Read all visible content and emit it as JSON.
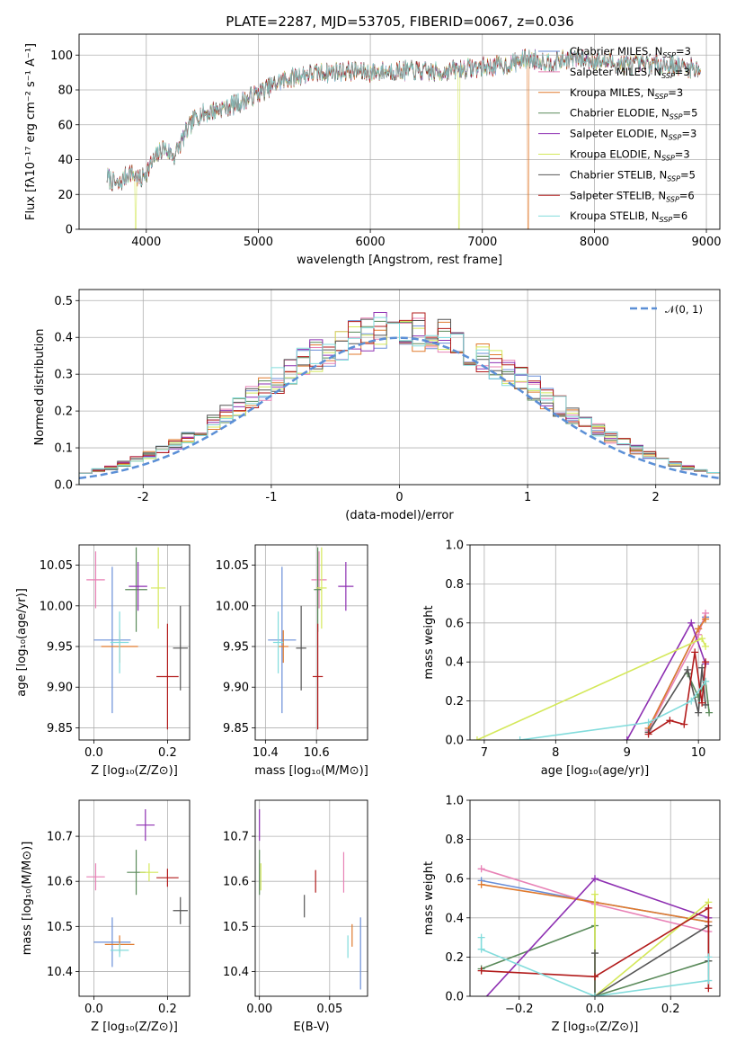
{
  "colors": {
    "c_miles": "#6a8fd8",
    "s_miles": "#e882b6",
    "k_miles": "#e07a2e",
    "c_elodie": "#5a8a5a",
    "s_elodie": "#8e30b2",
    "k_elodie": "#d4e85a",
    "c_stelib": "#555555",
    "s_stelib": "#b21b1b",
    "k_stelib": "#82dcdc",
    "normal": "#5b8fd6"
  },
  "figure": {
    "title": "PLATE=2287, MJD=53705, FIBERID=0067, z=0.036"
  },
  "chart_data": [
    {
      "id": "spectrum",
      "type": "line",
      "xlabel": "wavelength [Angstrom, rest frame]",
      "ylabel": "Flux [fλ10⁻¹⁷ erg cm⁻² s⁻¹ A⁻¹]",
      "xlim": [
        3400,
        9120
      ],
      "ylim": [
        0,
        112
      ],
      "xticks": [
        4000,
        5000,
        6000,
        7000,
        8000,
        9000
      ],
      "yticks": [
        0,
        20,
        40,
        60,
        80,
        100
      ],
      "x_range": [
        3650,
        8950
      ],
      "continuum": [
        [
          3650,
          30
        ],
        [
          3750,
          25
        ],
        [
          3850,
          33
        ],
        [
          3950,
          28
        ],
        [
          4050,
          38
        ],
        [
          4150,
          47
        ],
        [
          4250,
          42
        ],
        [
          4350,
          55
        ],
        [
          4450,
          65
        ],
        [
          4550,
          67
        ],
        [
          4700,
          70
        ],
        [
          4850,
          73
        ],
        [
          5000,
          78
        ],
        [
          5200,
          85
        ],
        [
          5400,
          89
        ],
        [
          5600,
          90
        ],
        [
          5800,
          91
        ],
        [
          6000,
          90
        ],
        [
          6200,
          91
        ],
        [
          6400,
          91
        ],
        [
          6600,
          90
        ],
        [
          6800,
          92
        ],
        [
          7000,
          93
        ],
        [
          7200,
          94
        ],
        [
          7400,
          98
        ],
        [
          7600,
          96
        ],
        [
          7800,
          98
        ],
        [
          8000,
          97
        ],
        [
          8200,
          95
        ],
        [
          8400,
          94
        ],
        [
          8600,
          95
        ],
        [
          8800,
          93
        ],
        [
          8950,
          92
        ]
      ],
      "dropouts": [
        {
          "series": "Kroupa ELODIE",
          "at": 3905
        },
        {
          "series": "Kroupa ELODIE",
          "at": 6790
        },
        {
          "series": "Kroupa MILES",
          "at": 7410
        }
      ],
      "legend": [
        {
          "label": "Chabrier MILES, N",
          "sub": "SSP",
          "tail": "=3",
          "color_key": "c_miles"
        },
        {
          "label": "Salpeter MILES, N",
          "sub": "SSP",
          "tail": "=3",
          "color_key": "s_miles"
        },
        {
          "label": "Kroupa MILES, N",
          "sub": "SSP",
          "tail": "=3",
          "color_key": "k_miles"
        },
        {
          "label": "Chabrier ELODIE, N",
          "sub": "SSP",
          "tail": "=5",
          "color_key": "c_elodie"
        },
        {
          "label": "Salpeter ELODIE, N",
          "sub": "SSP",
          "tail": "=3",
          "color_key": "s_elodie"
        },
        {
          "label": "Kroupa ELODIE, N",
          "sub": "SSP",
          "tail": "=3",
          "color_key": "k_elodie"
        },
        {
          "label": "Chabrier STELIB, N",
          "sub": "SSP",
          "tail": "=5",
          "color_key": "c_stelib"
        },
        {
          "label": "Salpeter STELIB, N",
          "sub": "SSP",
          "tail": "=6",
          "color_key": "s_stelib"
        },
        {
          "label": "Kroupa STELIB, N",
          "sub": "SSP",
          "tail": "=6",
          "color_key": "k_stelib"
        }
      ]
    },
    {
      "id": "residuals",
      "type": "histogram",
      "xlabel": "(data-model)/error",
      "ylabel": "Normed distribution",
      "xlim": [
        -2.5,
        2.5
      ],
      "ylim": [
        0,
        0.53
      ],
      "xticks": [
        -2,
        -1,
        0,
        1,
        2
      ],
      "yticks": [
        0.0,
        0.1,
        0.2,
        0.3,
        0.4,
        0.5
      ],
      "bin_width": 0.1,
      "normal_label": "𝒩(0, 1)",
      "series_keys": [
        "c_miles",
        "s_miles",
        "k_miles",
        "c_elodie",
        "s_elodie",
        "k_elodie",
        "c_stelib",
        "s_stelib",
        "k_stelib"
      ]
    },
    {
      "id": "age_vs_Z",
      "type": "errorbar",
      "xlabel": "Z [log₁₀(Z/Z⊙)]",
      "ylabel": "age  [log₁₀(age/yr)]",
      "xlim": [
        -0.04,
        0.26
      ],
      "ylim": [
        9.835,
        10.075
      ],
      "xticks": [
        0.0,
        0.2
      ],
      "xticklabels": [
        "0.0",
        "0.2"
      ],
      "yticks": [
        9.85,
        9.9,
        9.95,
        10.0,
        10.05
      ],
      "points": [
        {
          "k": "c_miles",
          "x": 0.05,
          "xe": 0.05,
          "y": 9.958,
          "ye": 0.09
        },
        {
          "k": "s_miles",
          "x": 0.005,
          "xe": 0.025,
          "y": 10.032,
          "ye": 0.035
        },
        {
          "k": "k_miles",
          "x": 0.07,
          "xe": 0.05,
          "y": 9.95,
          "ye": 0.02
        },
        {
          "k": "c_elodie",
          "x": 0.115,
          "xe": 0.03,
          "y": 10.02,
          "ye": 0.052
        },
        {
          "k": "s_elodie",
          "x": 0.12,
          "xe": 0.025,
          "y": 10.024,
          "ye": 0.03
        },
        {
          "k": "k_elodie",
          "x": 0.175,
          "xe": 0.02,
          "y": 10.022,
          "ye": 0.05
        },
        {
          "k": "c_stelib",
          "x": 0.235,
          "xe": 0.02,
          "y": 9.948,
          "ye": 0.052
        },
        {
          "k": "s_stelib",
          "x": 0.2,
          "xe": 0.03,
          "y": 9.913,
          "ye": 0.065
        },
        {
          "k": "k_stelib",
          "x": 0.07,
          "xe": 0.025,
          "y": 9.955,
          "ye": 0.038
        }
      ]
    },
    {
      "id": "age_vs_mass",
      "type": "errorbar",
      "xlabel": "mass [log₁₀(M/M⊙)]",
      "ylabel": "",
      "xlim": [
        10.36,
        10.8
      ],
      "ylim": [
        9.835,
        10.075
      ],
      "xticks": [
        10.4,
        10.6
      ],
      "xticklabels": [
        "10.4",
        "10.6"
      ],
      "yticks": [
        9.85,
        9.9,
        9.95,
        10.0,
        10.05
      ],
      "points": [
        {
          "k": "c_miles",
          "x": 10.465,
          "xe": 0.055,
          "y": 9.958,
          "ye": 0.09
        },
        {
          "k": "s_miles",
          "x": 10.61,
          "xe": 0.03,
          "y": 10.032,
          "ye": 0.035
        },
        {
          "k": "k_miles",
          "x": 10.47,
          "xe": 0.02,
          "y": 9.95,
          "ye": 0.02
        },
        {
          "k": "c_elodie",
          "x": 10.605,
          "xe": 0.015,
          "y": 10.02,
          "ye": 0.052
        },
        {
          "k": "s_elodie",
          "x": 10.715,
          "xe": 0.03,
          "y": 10.024,
          "ye": 0.03
        },
        {
          "k": "k_elodie",
          "x": 10.62,
          "xe": 0.02,
          "y": 10.022,
          "ye": 0.05
        },
        {
          "k": "c_stelib",
          "x": 10.54,
          "xe": 0.02,
          "y": 9.948,
          "ye": 0.052
        },
        {
          "k": "s_stelib",
          "x": 10.605,
          "xe": 0.02,
          "y": 9.913,
          "ye": 0.065
        },
        {
          "k": "k_stelib",
          "x": 10.45,
          "xe": 0.02,
          "y": 9.955,
          "ye": 0.038
        }
      ]
    },
    {
      "id": "weight_vs_age",
      "type": "line",
      "xlabel": "age  [log₁₀(age/yr)]",
      "ylabel": "mass weight",
      "xlim": [
        6.8,
        10.3
      ],
      "ylim": [
        0.0,
        1.0
      ],
      "xticks": [
        7,
        8,
        9,
        10
      ],
      "yticks": [
        0.0,
        0.2,
        0.4,
        0.6,
        0.8,
        1.0
      ],
      "series": [
        {
          "k": "c_miles",
          "x": [
            9.3,
            10.0,
            10.1
          ],
          "y": [
            0.06,
            0.57,
            0.63
          ]
        },
        {
          "k": "s_miles",
          "x": [
            9.3,
            10.0,
            10.1
          ],
          "y": [
            0.05,
            0.54,
            0.65
          ]
        },
        {
          "k": "k_miles",
          "x": [
            9.3,
            10.0,
            10.1
          ],
          "y": [
            0.06,
            0.57,
            0.62
          ]
        },
        {
          "k": "c_elodie",
          "x": [
            9.85,
            10.0,
            10.1,
            10.15
          ],
          "y": [
            0.34,
            0.22,
            0.3,
            0.14
          ]
        },
        {
          "k": "s_elodie",
          "x": [
            9.0,
            9.9,
            10.1
          ],
          "y": [
            0.0,
            0.6,
            0.39
          ]
        },
        {
          "k": "k_elodie",
          "x": [
            6.9,
            10.05,
            10.1
          ],
          "y": [
            0.0,
            0.52,
            0.48
          ]
        },
        {
          "k": "c_stelib",
          "x": [
            9.3,
            9.85,
            10.0,
            10.05,
            10.1
          ],
          "y": [
            0.04,
            0.36,
            0.14,
            0.37,
            0.18
          ]
        },
        {
          "k": "s_stelib",
          "x": [
            9.3,
            9.6,
            9.8,
            9.95,
            10.05,
            10.1
          ],
          "y": [
            0.03,
            0.1,
            0.08,
            0.45,
            0.19,
            0.4
          ]
        },
        {
          "k": "k_stelib",
          "x": [
            7.5,
            9.3,
            9.9,
            10.1
          ],
          "y": [
            0.0,
            0.09,
            0.2,
            0.3
          ]
        }
      ]
    },
    {
      "id": "mass_vs_Z",
      "type": "errorbar",
      "xlabel": "Z [log₁₀(Z/Z⊙)]",
      "ylabel": "mass [log₁₀(M/M⊙)]",
      "xlim": [
        -0.04,
        0.26
      ],
      "ylim": [
        10.345,
        10.78
      ],
      "xticks": [
        0.0,
        0.2
      ],
      "xticklabels": [
        "0.0",
        "0.2"
      ],
      "yticks": [
        10.4,
        10.5,
        10.6,
        10.7
      ],
      "points": [
        {
          "k": "c_miles",
          "x": 0.05,
          "xe": 0.05,
          "y": 10.465,
          "ye": 0.055
        },
        {
          "k": "s_miles",
          "x": 0.005,
          "xe": 0.025,
          "y": 10.61,
          "ye": 0.03
        },
        {
          "k": "k_miles",
          "x": 0.07,
          "xe": 0.04,
          "y": 10.46,
          "ye": 0.02
        },
        {
          "k": "c_elodie",
          "x": 0.115,
          "xe": 0.025,
          "y": 10.62,
          "ye": 0.05
        },
        {
          "k": "s_elodie",
          "x": 0.14,
          "xe": 0.025,
          "y": 10.725,
          "ye": 0.035
        },
        {
          "k": "k_elodie",
          "x": 0.15,
          "xe": 0.025,
          "y": 10.62,
          "ye": 0.02
        },
        {
          "k": "c_stelib",
          "x": 0.235,
          "xe": 0.02,
          "y": 10.535,
          "ye": 0.03
        },
        {
          "k": "s_stelib",
          "x": 0.2,
          "xe": 0.03,
          "y": 10.608,
          "ye": 0.02
        },
        {
          "k": "k_stelib",
          "x": 0.07,
          "xe": 0.025,
          "y": 10.447,
          "ye": 0.015
        }
      ]
    },
    {
      "id": "mass_vs_EBV",
      "type": "errorbar",
      "xlabel": "E(B-V)",
      "ylabel": "",
      "xlim": [
        -0.003,
        0.077
      ],
      "ylim": [
        10.345,
        10.78
      ],
      "xticks": [
        0.0,
        0.05
      ],
      "xticklabels": [
        "0.00",
        "0.05"
      ],
      "yticks": [
        10.4,
        10.5,
        10.6,
        10.7
      ],
      "points": [
        {
          "k": "c_miles",
          "x": 0.072,
          "xe": 0.0,
          "y": 10.44,
          "ye": 0.08
        },
        {
          "k": "s_miles",
          "x": 0.06,
          "xe": 0.0,
          "y": 10.62,
          "ye": 0.045
        },
        {
          "k": "k_miles",
          "x": 0.066,
          "xe": 0.0,
          "y": 10.48,
          "ye": 0.025
        },
        {
          "k": "c_elodie",
          "x": 0.0,
          "xe": 0.0,
          "y": 10.62,
          "ye": 0.05
        },
        {
          "k": "s_elodie",
          "x": 0.0,
          "xe": 0.0,
          "y": 10.725,
          "ye": 0.035
        },
        {
          "k": "k_elodie",
          "x": 0.001,
          "xe": 0.0,
          "y": 10.61,
          "ye": 0.03
        },
        {
          "k": "c_stelib",
          "x": 0.032,
          "xe": 0.0,
          "y": 10.545,
          "ye": 0.025
        },
        {
          "k": "s_stelib",
          "x": 0.04,
          "xe": 0.0,
          "y": 10.6,
          "ye": 0.025
        },
        {
          "k": "k_stelib",
          "x": 0.063,
          "xe": 0.0,
          "y": 10.455,
          "ye": 0.025
        }
      ]
    },
    {
      "id": "weight_vs_Z",
      "type": "line",
      "xlabel": "Z [log₁₀(Z/Z⊙)]",
      "ylabel": "mass weight",
      "xlim": [
        -0.33,
        0.33
      ],
      "ylim": [
        0.0,
        1.0
      ],
      "xticks": [
        -0.2,
        0.0,
        0.2
      ],
      "xticklabels": [
        "−0.2",
        "0.0",
        "0.2"
      ],
      "yticks": [
        0.0,
        0.2,
        0.4,
        0.6,
        0.8,
        1.0
      ],
      "series": [
        {
          "k": "c_miles",
          "x": [
            -0.3,
            0.0,
            0.3
          ],
          "y": [
            0.59,
            0.48,
            0.38
          ]
        },
        {
          "k": "s_miles",
          "x": [
            -0.3,
            0.0,
            0.3
          ],
          "y": [
            0.65,
            0.47,
            0.33
          ]
        },
        {
          "k": "k_miles",
          "x": [
            -0.3,
            0.0,
            0.3
          ],
          "y": [
            0.57,
            0.48,
            0.38
          ]
        },
        {
          "k": "c_elodie",
          "x": [
            -0.3,
            0.0,
            0.0,
            0.3
          ],
          "y": [
            0.14,
            0.36,
            0.0,
            0.18
          ]
        },
        {
          "k": "s_elodie",
          "x": [
            -0.3,
            0.0,
            0.3
          ],
          "y": [
            -0.03,
            0.6,
            0.4
          ]
        },
        {
          "k": "k_elodie",
          "x": [
            0.0,
            0.0,
            0.3
          ],
          "y": [
            0.52,
            0.0,
            0.48
          ]
        },
        {
          "k": "c_stelib",
          "x": [
            0.0,
            0.0,
            0.3,
            0.3
          ],
          "y": [
            0.22,
            0.0,
            0.36,
            0.18
          ]
        },
        {
          "k": "s_stelib",
          "x": [
            -0.3,
            0.0,
            0.3,
            0.3
          ],
          "y": [
            0.13,
            0.1,
            0.45,
            0.04
          ]
        },
        {
          "k": "k_stelib",
          "x": [
            -0.3,
            -0.3,
            0.0,
            0.3,
            0.3
          ],
          "y": [
            0.3,
            0.24,
            0.0,
            0.08,
            0.2
          ]
        }
      ]
    }
  ]
}
